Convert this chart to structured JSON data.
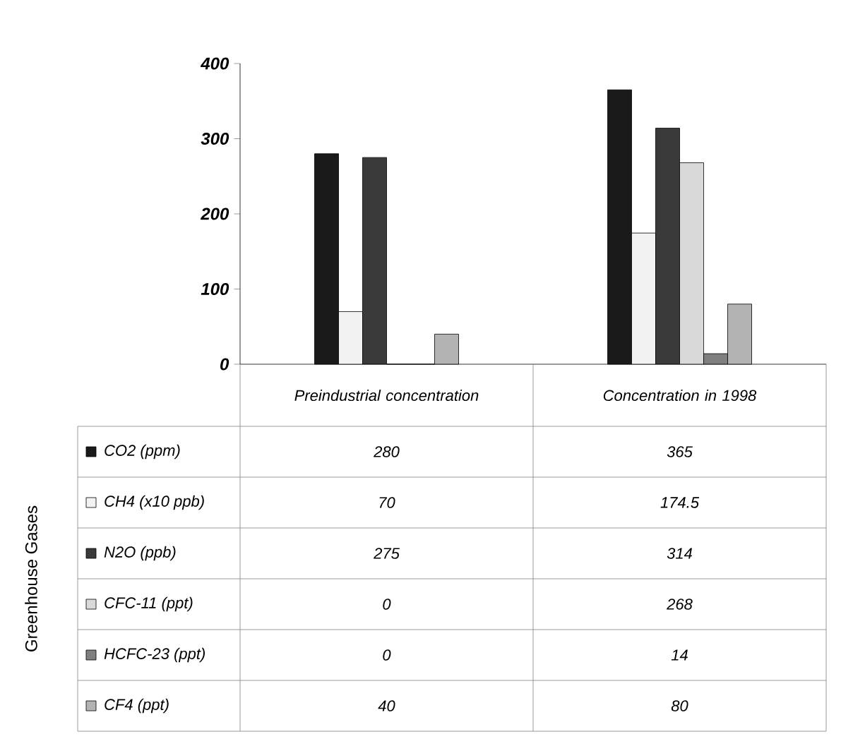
{
  "chart_data": {
    "type": "bar",
    "annotations": [
      "Greenhouse Gases"
    ],
    "categories": [
      "Preindustrial concentration",
      "Concentration in 1998"
    ],
    "series": [
      {
        "name": "CO2 (ppm)",
        "color": "#1a1a1a",
        "values": [
          280,
          365
        ],
        "value_labels": [
          "280",
          "365"
        ]
      },
      {
        "name": "CH4 (x10 ppb)",
        "color": "#f2f2f2",
        "values": [
          70,
          174.5
        ],
        "value_labels": [
          "70",
          "174.5"
        ]
      },
      {
        "name": "N2O (ppb)",
        "color": "#3a3a3a",
        "values": [
          275,
          314
        ],
        "value_labels": [
          "275",
          "314"
        ]
      },
      {
        "name": "CFC-11 (ppt)",
        "color": "#d9d9d9",
        "values": [
          0,
          268
        ],
        "value_labels": [
          "0",
          "268"
        ]
      },
      {
        "name": "HCFC-23 (ppt)",
        "color": "#7f7f7f",
        "values": [
          0,
          14
        ],
        "value_labels": [
          "0",
          "14"
        ]
      },
      {
        "name": "CF4 (ppt)",
        "color": "#b3b3b3",
        "values": [
          40,
          80
        ],
        "value_labels": [
          "40",
          "80"
        ]
      }
    ],
    "ylim": [
      0,
      400
    ],
    "yticks": [
      0,
      100,
      200,
      300,
      400
    ],
    "legend": "bottom"
  }
}
